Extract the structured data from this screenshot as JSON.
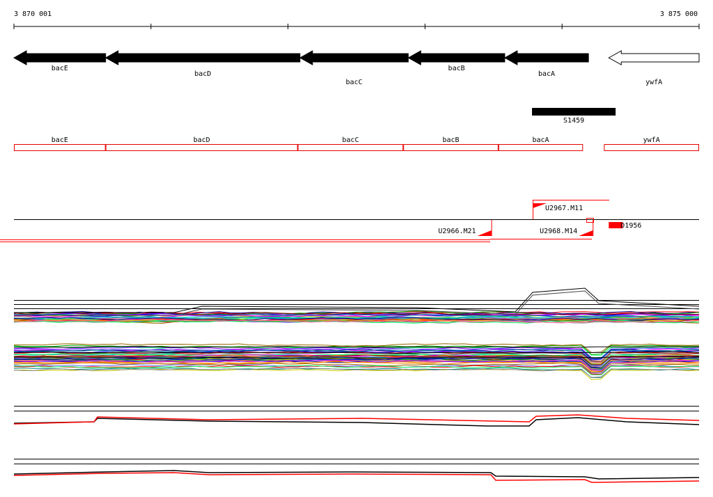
{
  "ruler": {
    "start_label": "3 870 001",
    "end_label": "3 875 000",
    "start_bp": 3870001,
    "end_bp": 3875000,
    "tick_count": 6
  },
  "genes": [
    {
      "name": "bacE",
      "start": 3870001,
      "end": 3870670,
      "strand": "-",
      "filled": true
    },
    {
      "name": "bacD",
      "start": 3870670,
      "end": 3872088,
      "strand": "-",
      "filled": true
    },
    {
      "name": "bacC",
      "start": 3872088,
      "end": 3872878,
      "strand": "-",
      "filled": true
    },
    {
      "name": "bacB",
      "start": 3872878,
      "end": 3873582,
      "strand": "-",
      "filled": true
    },
    {
      "name": "bacA",
      "start": 3873582,
      "end": 3874193,
      "strand": "-",
      "filled": true
    },
    {
      "name": "ywfA",
      "start": 3874341,
      "end": 3875000,
      "strand": "-",
      "filled": false
    }
  ],
  "segment": {
    "name": "S1459",
    "start": 3873781,
    "end": 3874391
  },
  "regions": [
    {
      "name": "bacE",
      "start": 3870001,
      "end": 3870670
    },
    {
      "name": "bacD",
      "start": 3870670,
      "end": 3872072
    },
    {
      "name": "bacC",
      "start": 3872072,
      "end": 3872842
    },
    {
      "name": "bacB",
      "start": 3872842,
      "end": 3873536
    },
    {
      "name": "bacA",
      "start": 3873536,
      "end": 3874153
    },
    {
      "name": "ywfA",
      "start": 3874306,
      "end": 3875000
    }
  ],
  "features": [
    {
      "name": "U2967.M11",
      "type": "flag",
      "pos": 3873786,
      "direction": "right",
      "row": "upper"
    },
    {
      "name": "U2966.M21",
      "type": "flag",
      "pos": 3873484,
      "direction": "left",
      "row": "lower"
    },
    {
      "name": "U2968.M14",
      "type": "flag",
      "pos": 3874224,
      "direction": "left",
      "row": "lower"
    },
    {
      "name": "D1956",
      "type": "box",
      "pos": 3874341,
      "row": "lower"
    }
  ],
  "colors": {
    "gene_fill": "#000000",
    "region_stroke": "#e60000",
    "feature": "#ff0000",
    "axis": "#000000"
  }
}
